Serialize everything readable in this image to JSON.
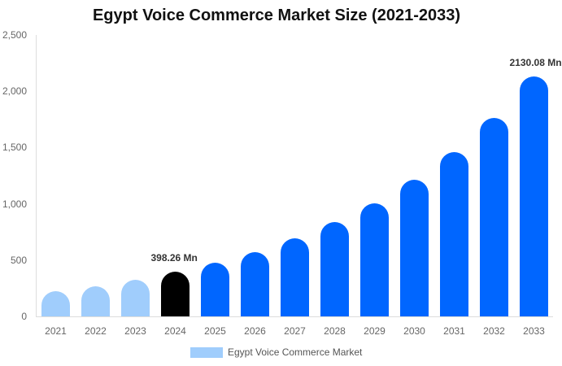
{
  "chart_data": {
    "type": "bar",
    "title": "Egypt Voice Commerce Market Size (2021-2033)",
    "xlabel": "",
    "ylabel": "",
    "ylim": [
      0,
      2500
    ],
    "yticks": [
      0,
      500,
      1000,
      1500,
      2000,
      2500
    ],
    "ytick_labels": [
      "0",
      "500",
      "1,000",
      "1,500",
      "2,000",
      "2,500"
    ],
    "grid": false,
    "legend_position": "bottom",
    "categories": [
      "2021",
      "2022",
      "2023",
      "2024",
      "2025",
      "2026",
      "2027",
      "2028",
      "2029",
      "2030",
      "2031",
      "2032",
      "2033"
    ],
    "series": [
      {
        "name": "Egypt Voice Commerce Market",
        "values": [
          224,
          268,
          325,
          398.26,
          477,
          571,
          694,
          839,
          1005,
          1214,
          1460,
          1763,
          2130.08
        ]
      }
    ],
    "bar_colors": [
      "#a0cdfc",
      "#a0cdfc",
      "#a0cdfc",
      "#000000",
      "#0066ff",
      "#0066ff",
      "#0066ff",
      "#0066ff",
      "#0066ff",
      "#0066ff",
      "#0066ff",
      "#0066ff",
      "#0066ff"
    ],
    "annotations": [
      {
        "category": "2024",
        "text": "398.26 Mn"
      },
      {
        "category": "2033",
        "text": "2130.08 Mn"
      }
    ],
    "unit": "Mn"
  },
  "colors": {
    "historical": "#a0cdfc",
    "base_year": "#000000",
    "forecast": "#0066ff"
  },
  "legend": {
    "label": "Egypt Voice Commerce Market",
    "swatch_color": "#a0cdfc"
  }
}
